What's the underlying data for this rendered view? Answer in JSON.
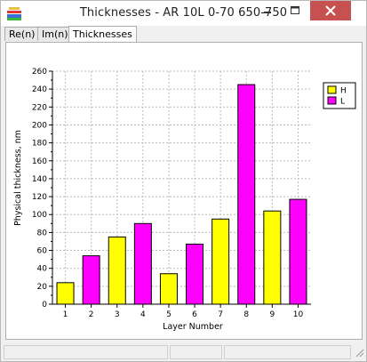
{
  "window": {
    "title": "Thicknesses - AR 10L 0-70 650-750"
  },
  "tabs": [
    {
      "label": "Re(n)",
      "active": false
    },
    {
      "label": "Im(n)",
      "active": false
    },
    {
      "label": "Thicknesses",
      "active": true
    }
  ],
  "colors": {
    "H": "#ffff00",
    "L": "#ff00ff",
    "close": "#c75050"
  },
  "chart_data": {
    "type": "bar",
    "categories": [
      "1",
      "2",
      "3",
      "4",
      "5",
      "6",
      "7",
      "8",
      "9",
      "10"
    ],
    "values": [
      24,
      54,
      75,
      90,
      34,
      67,
      95,
      245,
      104,
      117
    ],
    "layer_type": [
      "H",
      "L",
      "H",
      "L",
      "H",
      "L",
      "H",
      "L",
      "H",
      "L"
    ],
    "series": [
      {
        "name": "H",
        "color": "#ffff00"
      },
      {
        "name": "L",
        "color": "#ff00ff"
      }
    ],
    "yticks": [
      0,
      20,
      40,
      60,
      80,
      100,
      120,
      140,
      160,
      180,
      200,
      220,
      240,
      260
    ],
    "ylim": [
      0,
      260
    ],
    "xlabel": "Layer Number",
    "ylabel": "Physical thickness, nm",
    "grid": true,
    "legend_position": "top-right"
  }
}
